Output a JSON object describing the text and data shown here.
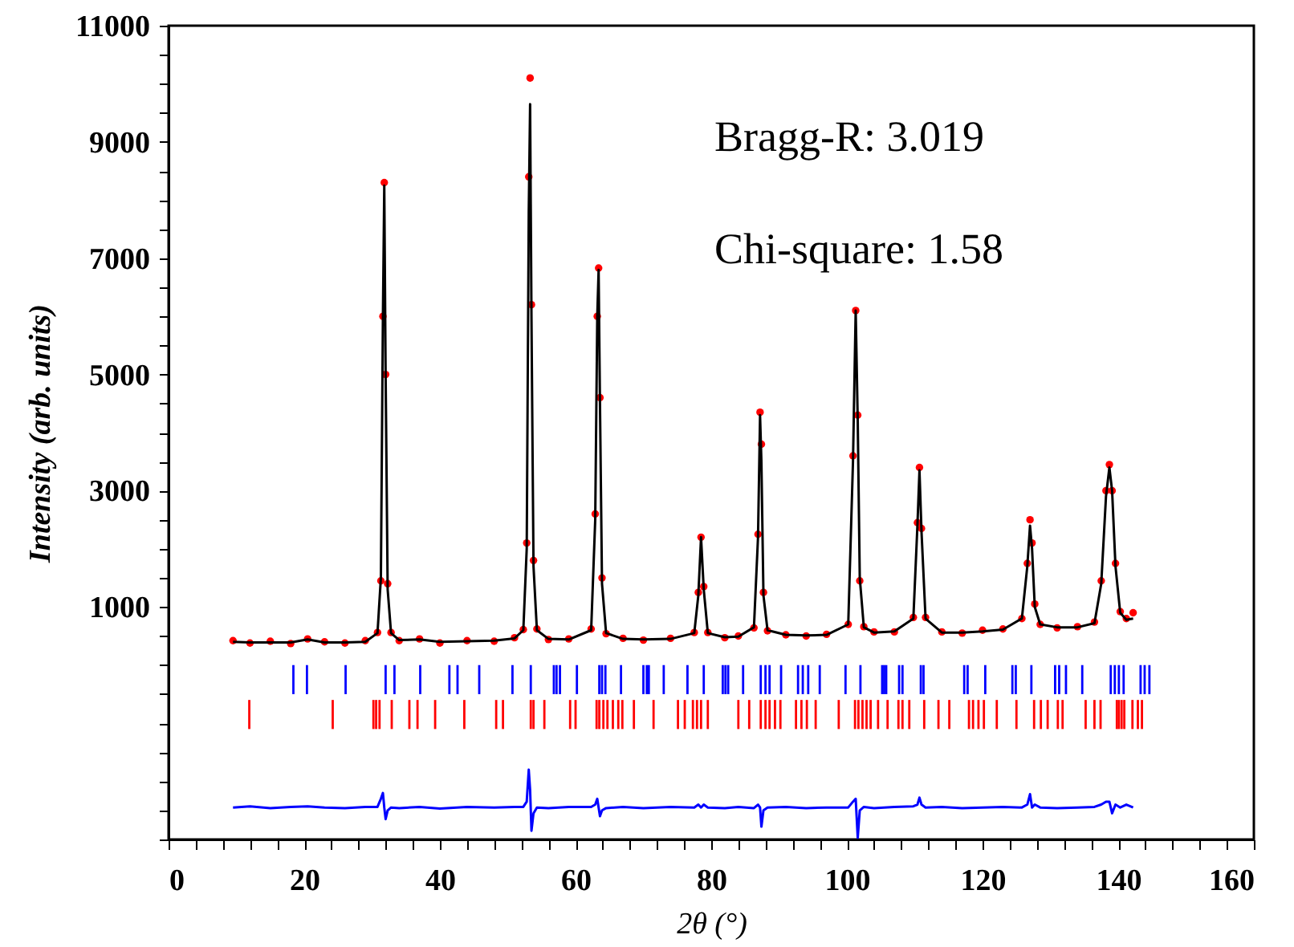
{
  "chart_data": {
    "type": "scatter",
    "xlabel": "2θ (°)",
    "ylabel": "Intensity (arb. units)",
    "annotations": [
      "Bragg-R: 3.019",
      "Chi-square: 1.58"
    ],
    "xlim": [
      0,
      160
    ],
    "ylim": [
      -3000,
      11000
    ],
    "xticks": [
      0,
      {
        "value": 4,
        "label": null
      },
      {
        "value": 8,
        "label": null
      },
      {
        "value": 12,
        "label": null
      },
      {
        "value": 16,
        "label": null
      },
      20,
      {
        "value": 24,
        "label": null
      },
      {
        "value": 28,
        "label": null
      },
      {
        "value": 32,
        "label": null
      },
      {
        "value": 36,
        "label": null
      },
      40,
      {
        "value": 44,
        "label": null
      },
      {
        "value": 48,
        "label": null
      },
      {
        "value": 52,
        "label": null
      },
      {
        "value": 56,
        "label": null
      },
      60,
      {
        "value": 64,
        "label": null
      },
      {
        "value": 68,
        "label": null
      },
      {
        "value": 72,
        "label": null
      },
      {
        "value": 76,
        "label": null
      },
      80,
      {
        "value": 84,
        "label": null
      },
      {
        "value": 88,
        "label": null
      },
      {
        "value": 92,
        "label": null
      },
      {
        "value": 96,
        "label": null
      },
      100,
      {
        "value": 104,
        "label": null
      },
      {
        "value": 108,
        "label": null
      },
      {
        "value": 112,
        "label": null
      },
      {
        "value": 116,
        "label": null
      },
      120,
      {
        "value": 124,
        "label": null
      },
      {
        "value": 128,
        "label": null
      },
      {
        "value": 132,
        "label": null
      },
      {
        "value": 136,
        "label": null
      },
      140,
      {
        "value": 144,
        "label": null
      },
      {
        "value": 148,
        "label": null
      },
      {
        "value": 152,
        "label": null
      },
      {
        "value": 156,
        "label": null
      },
      160
    ],
    "yticks": [
      {
        "value": -3000,
        "label": null
      },
      {
        "value": -2500,
        "label": null
      },
      {
        "value": -2000,
        "label": null
      },
      {
        "value": -1500,
        "label": null
      },
      {
        "value": -1000,
        "label": null
      },
      {
        "value": -500,
        "label": null
      },
      {
        "value": 0,
        "label": null
      },
      {
        "value": 500,
        "label": null
      },
      1000,
      {
        "value": 1500,
        "label": null
      },
      {
        "value": 2000,
        "label": null
      },
      {
        "value": 2500,
        "label": null
      },
      3000,
      {
        "value": 3500,
        "label": null
      },
      {
        "value": 4000,
        "label": null
      },
      {
        "value": 4500,
        "label": null
      },
      5000,
      {
        "value": 5500,
        "label": null
      },
      {
        "value": 6000,
        "label": null
      },
      {
        "value": 6500,
        "label": null
      },
      7000,
      {
        "value": 7500,
        "label": null
      },
      {
        "value": 8000,
        "label": null
      },
      {
        "value": 8500,
        "label": null
      },
      9000,
      {
        "value": 9500,
        "label": null
      },
      {
        "value": 10000,
        "label": null
      },
      {
        "value": 10500,
        "label": null
      },
      11000
    ],
    "x": [
      9.5,
      12,
      15,
      18,
      20.5,
      23,
      26,
      29,
      30.8,
      31.3,
      31.6,
      31.8,
      32.0,
      32.3,
      32.8,
      34,
      37,
      40,
      44,
      48,
      51,
      52.3,
      52.8,
      53.1,
      53.3,
      53.5,
      53.8,
      54.3,
      56,
      59,
      62.3,
      62.9,
      63.2,
      63.4,
      63.6,
      63.9,
      64.5,
      67,
      70,
      74,
      77.5,
      78.1,
      78.5,
      78.9,
      79.5,
      82,
      84,
      86.3,
      86.9,
      87.2,
      87.4,
      87.7,
      88.3,
      91,
      94,
      97,
      100.2,
      100.9,
      101.3,
      101.6,
      101.9,
      102.5,
      104,
      107,
      109.8,
      110.4,
      110.7,
      111.0,
      111.6,
      114,
      117,
      120,
      123,
      125.8,
      126.6,
      127.0,
      127.3,
      127.7,
      128.5,
      131,
      134,
      136.5,
      137.5,
      138.2,
      138.7,
      139.1,
      139.6,
      140.3,
      141.2,
      142.2
    ],
    "series": [
      {
        "marker": "circle",
        "color": "#ff0000",
        "values": [
          420,
          380,
          410,
          370,
          450,
          400,
          380,
          420,
          560,
          1450,
          6000,
          8300,
          5000,
          1400,
          560,
          420,
          450,
          380,
          420,
          410,
          470,
          610,
          2100,
          8400,
          10100,
          6200,
          1800,
          620,
          440,
          450,
          620,
          2600,
          6000,
          6830,
          4600,
          1500,
          540,
          460,
          430,
          460,
          560,
          1250,
          2200,
          1350,
          560,
          470,
          500,
          640,
          2250,
          4350,
          3800,
          1250,
          590,
          520,
          500,
          530,
          700,
          3600,
          6100,
          4300,
          1450,
          660,
          570,
          570,
          820,
          2450,
          3400,
          2350,
          820,
          570,
          550,
          600,
          620,
          800,
          1750,
          2500,
          2100,
          1050,
          700,
          640,
          660,
          740,
          1450,
          3000,
          3450,
          3000,
          1750,
          920,
          800,
          900
        ]
      },
      {
        "type": "line",
        "color": "#000000",
        "values": [
          400,
          390,
          390,
          390,
          440,
          390,
          390,
          400,
          550,
          1500,
          6000,
          8250,
          5000,
          1300,
          550,
          430,
          440,
          400,
          410,
          420,
          460,
          600,
          2000,
          7800,
          9650,
          6000,
          1700,
          600,
          450,
          440,
          600,
          2500,
          6000,
          6800,
          4500,
          1400,
          550,
          450,
          440,
          450,
          550,
          1200,
          2200,
          1300,
          550,
          480,
          490,
          650,
          2200,
          4300,
          3500,
          1200,
          600,
          520,
          510,
          520,
          700,
          3500,
          6100,
          4200,
          1500,
          650,
          560,
          580,
          800,
          2400,
          3350,
          2300,
          800,
          560,
          560,
          580,
          610,
          800,
          1700,
          2400,
          2000,
          1000,
          700,
          650,
          650,
          720,
          1400,
          2900,
          3400,
          3000,
          1700,
          900,
          780,
          800
        ]
      },
      {
        "type": "line",
        "color": "#0000ff",
        "values": [
          -2450,
          -2430,
          -2460,
          -2440,
          -2430,
          -2450,
          -2460,
          -2440,
          -2440,
          -2300,
          -2200,
          -2450,
          -2650,
          -2500,
          -2450,
          -2460,
          -2440,
          -2470,
          -2440,
          -2450,
          -2440,
          -2440,
          -2350,
          -1800,
          -2150,
          -2850,
          -2550,
          -2450,
          -2460,
          -2440,
          -2440,
          -2400,
          -2300,
          -2450,
          -2600,
          -2500,
          -2460,
          -2440,
          -2460,
          -2440,
          -2450,
          -2400,
          -2450,
          -2400,
          -2450,
          -2460,
          -2440,
          -2460,
          -2400,
          -2450,
          -2780,
          -2500,
          -2450,
          -2440,
          -2460,
          -2450,
          -2450,
          -2350,
          -2300,
          -2970,
          -2500,
          -2440,
          -2460,
          -2440,
          -2430,
          -2400,
          -2280,
          -2400,
          -2450,
          -2440,
          -2460,
          -2450,
          -2440,
          -2450,
          -2400,
          -2220,
          -2450,
          -2400,
          -2450,
          -2460,
          -2450,
          -2440,
          -2400,
          -2350,
          -2350,
          -2550,
          -2400,
          -2450,
          -2400,
          -2450
        ]
      },
      {
        "type": "bar",
        "color": "#0000ff",
        "x": [
          18.4,
          20.4,
          26.1,
          32.0,
          33.3,
          37.1,
          41.4,
          42.6,
          45.8,
          50.7,
          53.4,
          56.8,
          57.2,
          57.7,
          60.2,
          63.5,
          63.9,
          64.4,
          66.7,
          70.0,
          70.5,
          70.8,
          73.0,
          76.5,
          78.9,
          81.7,
          82.1,
          82.5,
          84.7,
          87.3,
          88.0,
          88.6,
          90.3,
          92.8,
          93.5,
          94.3,
          96.0,
          99.8,
          102.0,
          105.2,
          105.5,
          105.8,
          107.7,
          108.2,
          110.9,
          111.3,
          117.3,
          117.8,
          120.4,
          124.4,
          124.9,
          127.2,
          130.7,
          131.3,
          132.3,
          134.7,
          138.9,
          139.5,
          140.1,
          140.8,
          143.3,
          143.9,
          144.6
        ],
        "base": [
          -500,
          -500,
          -500,
          -500,
          -500,
          -500,
          -500,
          -500,
          -500,
          -500,
          -500,
          -500,
          -500,
          -500,
          -500,
          -500,
          -500,
          -500,
          -500,
          -500,
          -500,
          -500,
          -500,
          -500,
          -500,
          -500,
          -500,
          -500,
          -500,
          -500,
          -500,
          -500,
          -500,
          -500,
          -500,
          -500,
          -500,
          -500,
          -500,
          -500,
          -500,
          -500,
          -500,
          -500,
          -500,
          -500,
          -500,
          -500,
          -500,
          -500,
          -500,
          -500,
          -500,
          -500,
          -500,
          -500,
          -500,
          -500,
          -500,
          -500,
          -500,
          -500,
          -500
        ],
        "values": [
          500,
          500,
          500,
          500,
          500,
          500,
          500,
          500,
          500,
          500,
          500,
          500,
          500,
          500,
          500,
          500,
          500,
          500,
          500,
          500,
          500,
          500,
          500,
          500,
          500,
          500,
          500,
          500,
          500,
          500,
          500,
          500,
          500,
          500,
          500,
          500,
          500,
          500,
          500,
          500,
          500,
          500,
          500,
          500,
          500,
          500,
          500,
          500,
          500,
          500,
          500,
          500,
          500,
          500,
          500,
          500,
          500,
          500,
          500,
          500,
          500,
          500,
          500
        ]
      },
      {
        "type": "bar",
        "color": "#ff0000",
        "x": [
          11.9,
          24.2,
          30.2,
          30.6,
          31.1,
          32.9,
          35.5,
          36.7,
          39.3,
          43.6,
          48.3,
          49.3,
          53.4,
          53.8,
          55.4,
          59.2,
          60.0,
          63.1,
          63.5,
          64.1,
          64.7,
          65.5,
          66.3,
          66.9,
          68.6,
          71.5,
          75.1,
          76.1,
          77.3,
          77.9,
          78.5,
          79.5,
          84.0,
          85.6,
          87.3,
          88.0,
          88.6,
          89.4,
          90.2,
          92.5,
          93.3,
          94.1,
          95.4,
          98.8,
          101.2,
          101.7,
          102.3,
          102.9,
          103.5,
          104.6,
          106.0,
          107.6,
          108.2,
          109.2,
          111.4,
          113.5,
          115.1,
          118.0,
          118.6,
          119.4,
          120.2,
          122.1,
          125.0,
          127.6,
          128.6,
          129.6,
          131.1,
          131.8,
          135.2,
          136.5,
          137.4,
          139.8,
          140.1,
          140.5,
          140.9,
          142.1,
          142.9,
          143.5
        ],
        "base": [
          -1100,
          -1100,
          -1100,
          -1100,
          -1100,
          -1100,
          -1100,
          -1100,
          -1100,
          -1100,
          -1100,
          -1100,
          -1100,
          -1100,
          -1100,
          -1100,
          -1100,
          -1100,
          -1100,
          -1100,
          -1100,
          -1100,
          -1100,
          -1100,
          -1100,
          -1100,
          -1100,
          -1100,
          -1100,
          -1100,
          -1100,
          -1100,
          -1100,
          -1100,
          -1100,
          -1100,
          -1100,
          -1100,
          -1100,
          -1100,
          -1100,
          -1100,
          -1100,
          -1100,
          -1100,
          -1100,
          -1100,
          -1100,
          -1100,
          -1100,
          -1100,
          -1100,
          -1100,
          -1100,
          -1100,
          -1100,
          -1100,
          -1100,
          -1100,
          -1100,
          -1100,
          -1100,
          -1100,
          -1100,
          -1100,
          -1100,
          -1100,
          -1100,
          -1100,
          -1100,
          -1100,
          -1100,
          -1100,
          -1100,
          -1100,
          -1100,
          -1100,
          -1100
        ],
        "values": [
          500,
          500,
          500,
          500,
          500,
          500,
          500,
          500,
          500,
          500,
          500,
          500,
          500,
          500,
          500,
          500,
          500,
          500,
          500,
          500,
          500,
          500,
          500,
          500,
          500,
          500,
          500,
          500,
          500,
          500,
          500,
          500,
          500,
          500,
          500,
          500,
          500,
          500,
          500,
          500,
          500,
          500,
          500,
          500,
          500,
          500,
          500,
          500,
          500,
          500,
          500,
          500,
          500,
          500,
          500,
          500,
          500,
          500,
          500,
          500,
          500,
          500,
          500,
          500,
          500,
          500,
          500,
          500,
          500,
          500,
          500,
          500,
          500,
          500,
          500,
          500,
          500,
          500
        ]
      }
    ]
  }
}
